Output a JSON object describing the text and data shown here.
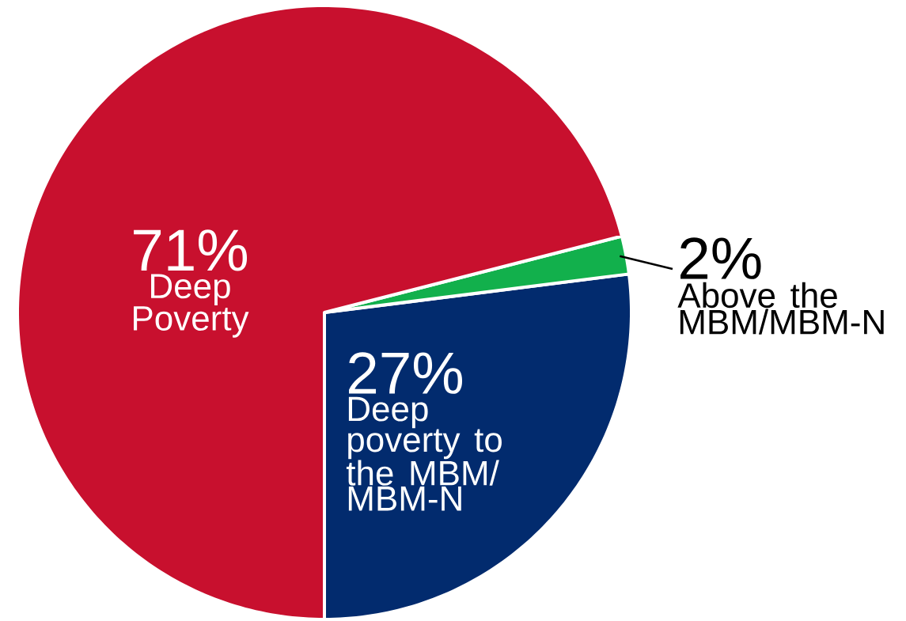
{
  "chart_data": {
    "type": "pie",
    "categories": [
      "Deep poverty to the MBM/ MBM-N",
      "Above the MBM/MBM-N",
      "Deep Poverty"
    ],
    "values": [
      27,
      2,
      71
    ],
    "value_labels": [
      "27%",
      "2%",
      "71%"
    ],
    "colors": [
      "#022b6e",
      "#12b04c",
      "#c8102e"
    ]
  }
}
